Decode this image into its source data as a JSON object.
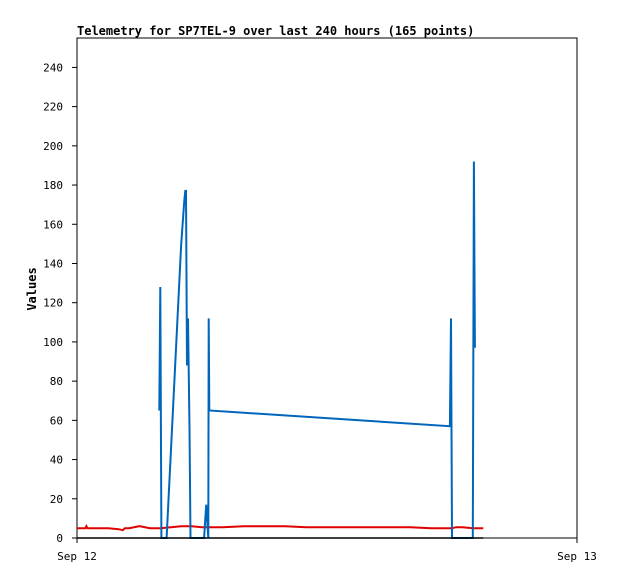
{
  "chart_data": {
    "type": "line",
    "title": "Telemetry for SP7TEL-9 over last 240 hours (165 points)",
    "xlabel": "",
    "ylabel": "Values",
    "x_ticks": [
      "Sep 12",
      "Sep 13"
    ],
    "y_ticks": [
      0,
      20,
      40,
      60,
      80,
      100,
      120,
      140,
      160,
      180,
      200,
      220,
      240
    ],
    "ylim": [
      0,
      255
    ],
    "xlim_hours": [
      0,
      24
    ],
    "grid": false,
    "colors": {
      "series_red": "#e00000",
      "series_blue": "#0066bb",
      "series_black": "#000000"
    },
    "series": [
      {
        "color": "#e00000",
        "x": [
          0.0,
          0.4,
          0.45,
          0.5,
          1.0,
          1.5,
          2.0,
          2.2,
          2.3,
          2.5,
          3.0,
          3.5,
          3.6,
          4.0,
          4.5,
          5.0,
          5.5,
          6.0,
          7.0,
          8.0,
          9.0,
          10.0,
          11.0,
          12.0,
          13.0,
          14.0,
          15.0,
          16.0,
          17.0,
          17.5,
          18.0,
          18.2,
          18.5,
          19.0,
          19.5
        ],
        "y": [
          5,
          5,
          6,
          5,
          5,
          5,
          4.5,
          4,
          5,
          5,
          6,
          5,
          5,
          5,
          5.5,
          6,
          6,
          5.5,
          5.5,
          6,
          6,
          6,
          5.5,
          5.5,
          5.5,
          5.5,
          5.5,
          5.5,
          5,
          5,
          5,
          5.5,
          5.5,
          5,
          5
        ]
      },
      {
        "color": "#0066bb",
        "x": [
          3.95,
          4.0,
          4.05,
          4.3,
          5.0,
          5.15,
          5.2,
          5.23,
          5.28,
          5.33,
          5.4,
          5.45,
          6.1,
          6.2,
          6.3,
          6.32,
          6.35,
          17.9,
          17.95,
          18.0,
          19.0,
          19.05,
          19.1
        ],
        "y": [
          65,
          128,
          0,
          0,
          150,
          172,
          177,
          177,
          88,
          112,
          56,
          0,
          0,
          17,
          0,
          112,
          65,
          57,
          112,
          0,
          0,
          192,
          97
        ]
      },
      {
        "color": "#000000",
        "x": [
          0.0,
          19.5
        ],
        "y": [
          0,
          0
        ]
      }
    ]
  }
}
